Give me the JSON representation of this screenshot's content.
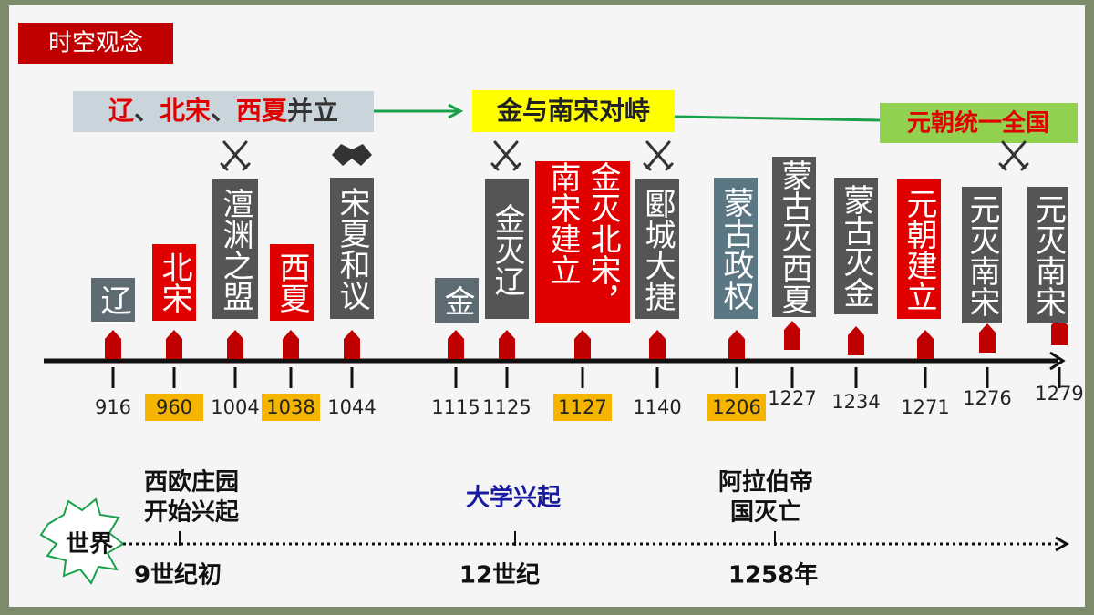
{
  "header": {
    "title": "时空观念"
  },
  "phases": [
    {
      "parts": [
        "辽",
        "、",
        "北宋",
        "、",
        "西夏",
        "并立"
      ]
    },
    {
      "text": "金与南宋对峙"
    },
    {
      "text": "元朝统一全国"
    }
  ],
  "events": [
    {
      "year": "916",
      "label": "辽",
      "color": "#5f6b72"
    },
    {
      "year": "960",
      "label": "北宋",
      "color": "#e00000",
      "highlight": true
    },
    {
      "year": "1004",
      "label": "澶渊之盟",
      "color": "#555555"
    },
    {
      "year": "1038",
      "label": "西夏",
      "color": "#e00000",
      "highlight": true
    },
    {
      "year": "1044",
      "label": "宋夏和议",
      "color": "#555555"
    },
    {
      "year": "1115",
      "label": "金",
      "color": "#5f6b72"
    },
    {
      "year": "1125",
      "label": "金灭辽",
      "color": "#555555"
    },
    {
      "year": "1127",
      "label": "金灭北宋，南宋建立",
      "color": "#e00000",
      "highlight": true
    },
    {
      "year": "1140",
      "label": "郾城大捷",
      "color": "#555555"
    },
    {
      "year": "1206",
      "label": "蒙古政权",
      "color": "#5b7784",
      "highlight": true
    },
    {
      "year": "1227",
      "label": "蒙古灭西夏",
      "color": "#555555"
    },
    {
      "year": "1234",
      "label": "蒙古灭金",
      "color": "#555555"
    },
    {
      "year": "1271",
      "label": "元朝建立",
      "color": "#e00000"
    },
    {
      "year": "1276",
      "label": "元灭南宋",
      "color": "#555555"
    },
    {
      "year": "1279",
      "label": "元灭南宋",
      "color": "#555555"
    }
  ],
  "world": {
    "label": "世界",
    "events": [
      {
        "lines": [
          "西欧庄园",
          "开始兴起"
        ],
        "time": "9世纪初"
      },
      {
        "lines": [
          "大学兴起"
        ],
        "time": "12世纪"
      },
      {
        "lines": [
          "阿拉伯帝",
          "国灭亡"
        ],
        "time": "1258年"
      }
    ]
  }
}
